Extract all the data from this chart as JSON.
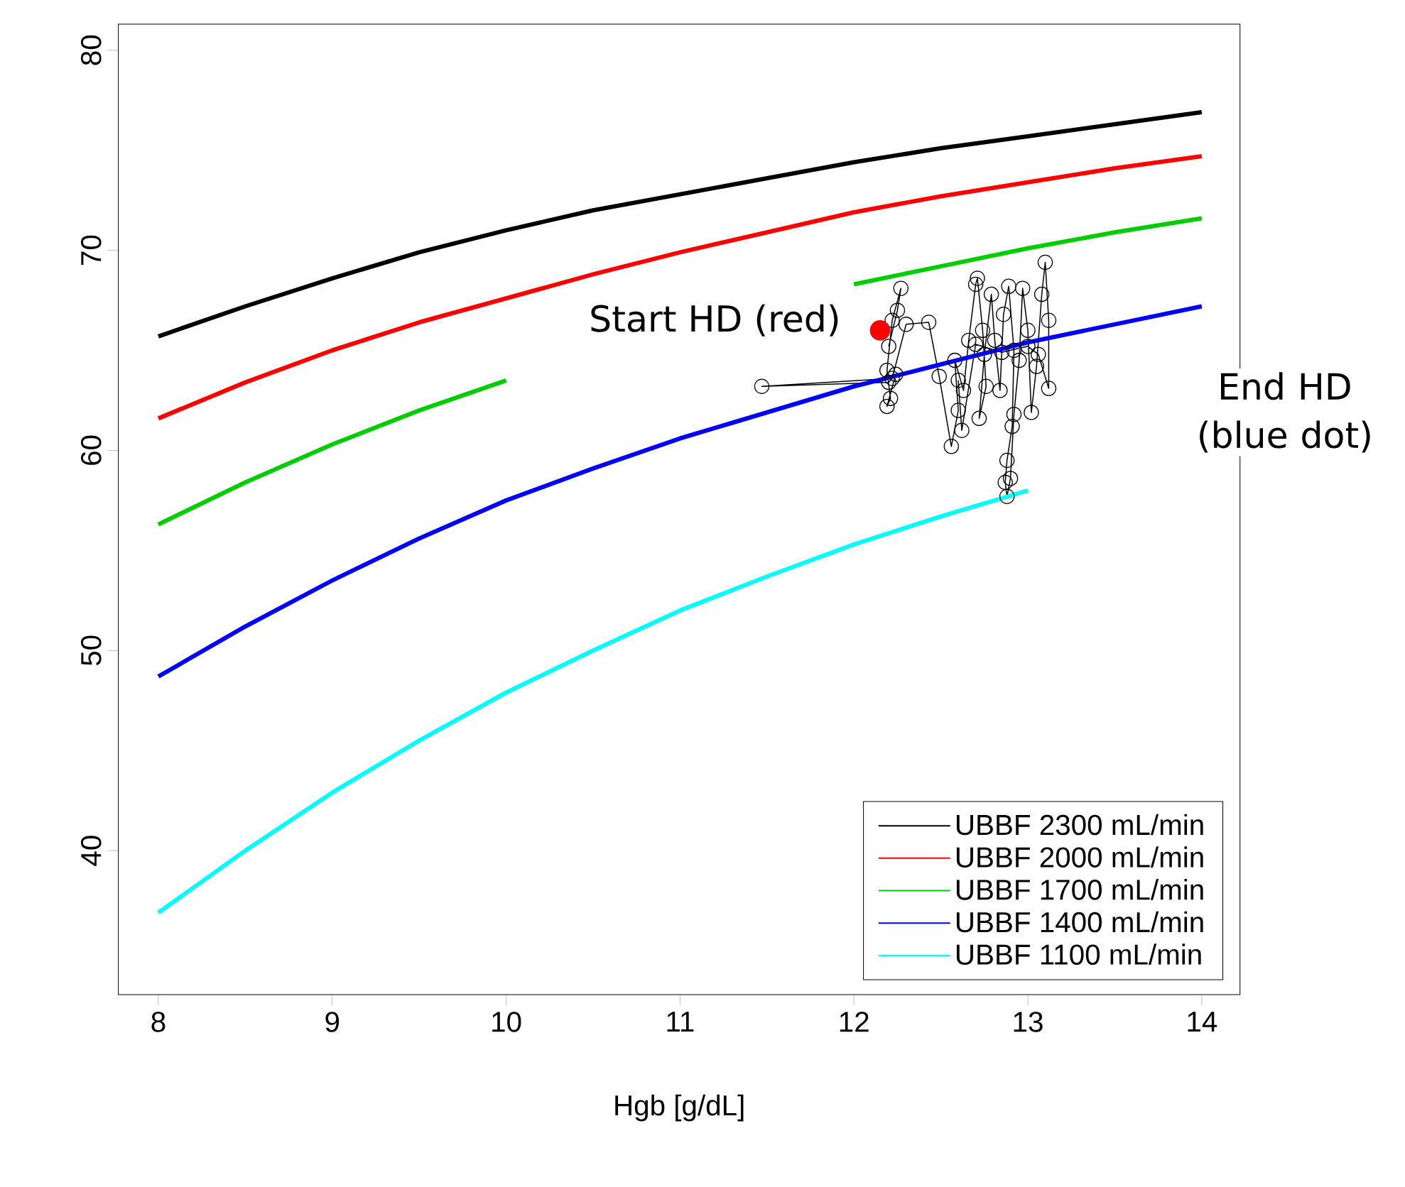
{
  "chart_data": {
    "type": "line",
    "xlabel": "Hgb [g/dL]",
    "xlim": [
      7.77,
      14.22
    ],
    "ylim": [
      32.8,
      81.3
    ],
    "xticks": [
      8,
      9,
      10,
      11,
      12,
      13,
      14
    ],
    "yticks": [
      40,
      50,
      60,
      70,
      80
    ],
    "grid": false,
    "legend": "bottom right",
    "annotations": [
      "Start HD (red)",
      "End HD (blue dot)"
    ],
    "x": [
      8,
      8.5,
      9,
      9.5,
      10,
      10.5,
      11,
      11.5,
      12,
      12.5,
      13,
      13.5,
      14
    ],
    "series": [
      {
        "name": "UBBF 2300 mL/min",
        "color": "#000000",
        "marker": "none",
        "values": [
          65.7,
          67.2,
          68.6,
          69.9,
          71.0,
          72.0,
          72.8,
          73.6,
          74.4,
          75.1,
          75.7,
          76.3,
          76.9
        ]
      },
      {
        "name": "UBBF 2000 mL/min",
        "color": "#ff0000",
        "marker": "none",
        "values": [
          61.6,
          63.4,
          65.0,
          66.4,
          67.6,
          68.8,
          69.9,
          70.9,
          71.9,
          72.7,
          73.4,
          74.1,
          74.7
        ]
      },
      {
        "name": "UBBF 1700 mL/min",
        "color": "#00cd00",
        "marker": "none",
        "values": [
          56.3,
          58.4,
          60.3,
          62.0,
          63.5,
          null,
          null,
          null,
          68.3,
          69.2,
          70.1,
          70.9,
          71.6
        ]
      },
      {
        "name": "UBBF 1400 mL/min",
        "color": "#0000ff",
        "marker": "none",
        "values": [
          48.7,
          51.2,
          53.5,
          55.6,
          57.5,
          59.1,
          60.6,
          61.9,
          63.2,
          64.3,
          65.4,
          66.3,
          67.2
        ]
      },
      {
        "name": "UBBF 1100 mL/min",
        "color": "#00ffff",
        "marker": "none",
        "values": [
          36.9,
          40.0,
          42.9,
          45.5,
          47.9,
          50.0,
          52.0,
          53.7,
          55.3,
          56.7,
          58.0,
          null,
          null
        ]
      },
      {
        "type": "line",
        "color": "#000000",
        "marker": "circle",
        "x": [
          12.2,
          12.25,
          12.27,
          12.22,
          12.19,
          12.21,
          12.19,
          12.24,
          12.2,
          11.47,
          12.22,
          12.3,
          12.43,
          12.49,
          12.56,
          12.6,
          12.58,
          12.63,
          12.66,
          12.7,
          12.71,
          12.74,
          12.76,
          12.72,
          12.75,
          12.79,
          12.81,
          12.84,
          12.86,
          12.89,
          12.92,
          12.91,
          12.88,
          12.87,
          12.88,
          12.9,
          12.92,
          12.95,
          12.97,
          13.0,
          13.02,
          13.05,
          13.08,
          13.1,
          13.12,
          13.12,
          13.06,
          13.0,
          12.85,
          12.7,
          12.62,
          12.6
        ],
        "values": [
          65.2,
          67.0,
          68.1,
          66.5,
          64.0,
          62.6,
          62.2,
          63.8,
          63.4,
          63.2,
          63.6,
          66.3,
          66.4,
          63.7,
          60.2,
          62.0,
          64.5,
          63.0,
          65.5,
          68.3,
          68.6,
          66.0,
          63.2,
          61.6,
          64.8,
          67.8,
          65.5,
          63.0,
          66.8,
          68.2,
          65.0,
          61.2,
          59.5,
          58.4,
          57.7,
          58.6,
          61.8,
          64.5,
          68.1,
          66.0,
          61.9,
          64.2,
          67.8,
          69.4,
          66.5,
          63.1,
          64.8,
          65.2,
          64.9,
          65.3,
          61.0,
          63.5
        ]
      },
      {
        "type": "scatter",
        "color": "#ff0000",
        "marker": "circle",
        "x": [
          12.15
        ],
        "values": [
          66.0
        ]
      }
    ]
  }
}
